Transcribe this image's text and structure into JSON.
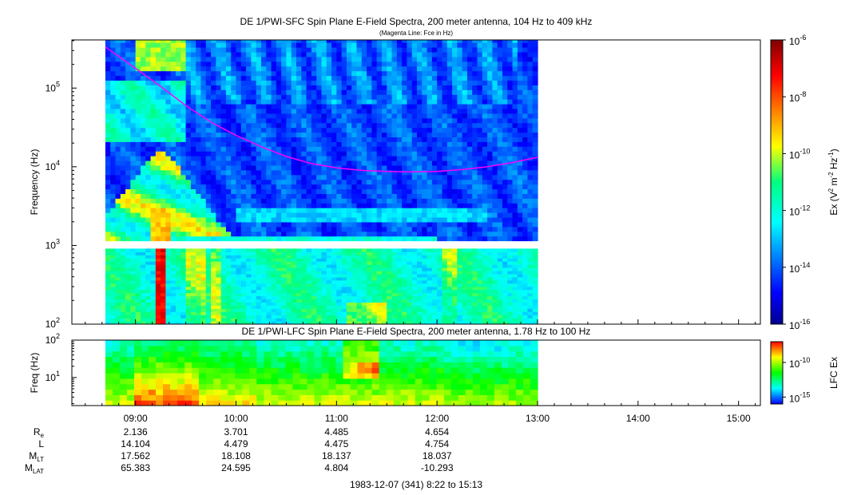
{
  "chart_data": [
    {
      "panel": "top",
      "type": "heatmap",
      "title": "DE 1/PWI-SFC  Spin Plane E-Field Spectra, 200 meter antenna, 104 Hz to 409 kHz",
      "subtitle": "(Magenta Line: Fce in Hz)",
      "ylabel": "Frequency (Hz)",
      "yscale": "log",
      "ylim": [
        100,
        409000
      ],
      "y_ticks": [
        {
          "v": 100,
          "label": "10",
          "sup": "2"
        },
        {
          "v": 1000,
          "label": "10",
          "sup": "3"
        },
        {
          "v": 10000,
          "label": "10",
          "sup": "4"
        },
        {
          "v": 100000,
          "label": "10",
          "sup": "5"
        }
      ],
      "data_time_range_h": [
        8.7,
        13.0
      ],
      "colorbar": {
        "label": "Ex (V",
        "label_sup1": "2",
        "label_mid": " m",
        "label_sup2": "-2",
        "label_mid2": " Hz",
        "label_sup3": "-1",
        "label_end": ")",
        "scale": "log",
        "range": [
          1e-16,
          1e-06
        ],
        "ticks": [
          {
            "v": -16,
            "label": "10",
            "sup": "-16"
          },
          {
            "v": -14,
            "label": "10",
            "sup": "-14"
          },
          {
            "v": -12,
            "label": "10",
            "sup": "-12"
          },
          {
            "v": -10,
            "label": "10",
            "sup": "-10"
          },
          {
            "v": -8,
            "label": "10",
            "sup": "-8"
          },
          {
            "v": -6,
            "label": "10",
            "sup": "-6"
          }
        ]
      },
      "fce_line": {
        "color": "#ff00ff",
        "t": [
          8.7,
          9.0,
          9.25,
          9.5,
          9.75,
          10.0,
          10.25,
          10.5,
          10.75,
          11.0,
          11.25,
          11.5,
          11.75,
          12.0,
          12.25,
          12.5,
          12.75,
          13.0
        ],
        "f": [
          333000,
          178000,
          105000,
          60000,
          37000,
          25000,
          18000,
          13500,
          11000,
          9700,
          9000,
          8700,
          8600,
          8700,
          9200,
          10000,
          11300,
          13200
        ]
      }
    },
    {
      "panel": "bottom",
      "type": "heatmap",
      "title": "DE 1/PWI-LFC  Spin Plane E-Field Spectra, 200 meter antenna, 1.78 Hz to 100 Hz",
      "ylabel": "Freq (Hz)",
      "yscale": "log",
      "ylim": [
        1.78,
        100
      ],
      "y_ticks": [
        {
          "v": 10,
          "label": "10",
          "sup": "1"
        },
        {
          "v": 100,
          "label": "10",
          "sup": "2"
        }
      ],
      "data_time_range_h": [
        8.7,
        13.0
      ],
      "colorbar": {
        "label": "LFC Ex",
        "scale": "log",
        "range": [
          1e-16,
          1e-07
        ],
        "ticks": [
          {
            "v": -15,
            "label": "10",
            "sup": "-15"
          },
          {
            "v": -10,
            "label": "10",
            "sup": "-10"
          }
        ]
      }
    }
  ],
  "x_axis": {
    "range_h": [
      8.367,
      15.217
    ],
    "ticks": [
      {
        "v": 9,
        "label": "09:00"
      },
      {
        "v": 10,
        "label": "10:00"
      },
      {
        "v": 11,
        "label": "11:00"
      },
      {
        "v": 12,
        "label": "12:00"
      },
      {
        "v": 13,
        "label": "13:00"
      },
      {
        "v": 14,
        "label": "14:00"
      },
      {
        "v": 15,
        "label": "15:00"
      }
    ]
  },
  "ephemeris": {
    "rows": [
      {
        "label": "R",
        "sub": "e",
        "values": [
          "2.136",
          "3.701",
          "4.485",
          "4.654"
        ]
      },
      {
        "label": "L",
        "sub": "",
        "values": [
          "14.104",
          "4.479",
          "4.475",
          "4.754"
        ]
      },
      {
        "label": "M",
        "sub": "LT",
        "values": [
          "17.562",
          "18.108",
          "18.137",
          "18.037"
        ]
      },
      {
        "label": "M",
        "sub": "LAT",
        "values": [
          "65.383",
          "24.595",
          "4.804",
          "-10.293"
        ]
      }
    ]
  },
  "footer": "1983-12-07 (341) 8:22 to 15:13"
}
